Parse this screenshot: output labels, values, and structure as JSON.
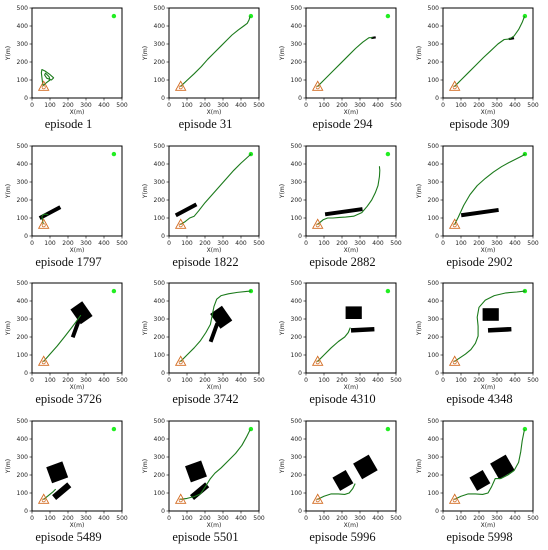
{
  "chart_data": {
    "type": "line",
    "description_free": true,
    "xlabel": "X(m)",
    "ylabel": "Y(m)",
    "xlim": [
      0,
      500
    ],
    "ylim": [
      0,
      500
    ],
    "xticks": [
      "0",
      "100",
      "200",
      "300",
      "400",
      "500"
    ],
    "yticks": [
      "0",
      "100",
      "200",
      "300",
      "400",
      "500"
    ],
    "colors": {
      "path": "#1b7a1b",
      "goal": "#22ee22",
      "start": "#d2691e",
      "obstacle": "#000000",
      "frame": "#000000"
    },
    "start": [
      65,
      65
    ],
    "goal": [
      455,
      455
    ],
    "panels": [
      {
        "caption": "episode 1",
        "obstacles": [],
        "path": [
          [
            62,
            68
          ],
          [
            58,
            90
          ],
          [
            55,
            115
          ],
          [
            52,
            140
          ],
          [
            55,
            158
          ],
          [
            72,
            150
          ],
          [
            100,
            130
          ],
          [
            120,
            112
          ],
          [
            108,
            100
          ],
          [
            82,
            110
          ],
          [
            70,
            128
          ],
          [
            75,
            138
          ],
          [
            95,
            118
          ],
          [
            100,
            100
          ],
          [
            80,
            85
          ],
          [
            65,
            72
          ]
        ]
      },
      {
        "caption": "episode 31",
        "obstacles": [],
        "path": [
          [
            65,
            65
          ],
          [
            100,
            98
          ],
          [
            140,
            135
          ],
          [
            180,
            175
          ],
          [
            215,
            215
          ],
          [
            250,
            250
          ],
          [
            290,
            290
          ],
          [
            320,
            320
          ],
          [
            350,
            350
          ],
          [
            385,
            378
          ],
          [
            415,
            400
          ],
          [
            435,
            415
          ],
          [
            445,
            435
          ],
          [
            450,
            452
          ]
        ]
      },
      {
        "caption": "episode 294",
        "obstacles": [
          {
            "shape": "rect",
            "cx": 375,
            "cy": 335,
            "w": 25,
            "h": 12,
            "angle": -10
          }
        ],
        "path": [
          [
            65,
            65
          ],
          [
            100,
            100
          ],
          [
            145,
            145
          ],
          [
            190,
            190
          ],
          [
            235,
            235
          ],
          [
            275,
            275
          ],
          [
            315,
            310
          ],
          [
            350,
            335
          ],
          [
            368,
            335
          ]
        ]
      },
      {
        "caption": "episode 309",
        "obstacles": [
          {
            "shape": "rect",
            "cx": 380,
            "cy": 330,
            "w": 30,
            "h": 12,
            "angle": -10
          }
        ],
        "path": [
          [
            65,
            65
          ],
          [
            100,
            100
          ],
          [
            140,
            140
          ],
          [
            180,
            180
          ],
          [
            225,
            225
          ],
          [
            265,
            262
          ],
          [
            305,
            300
          ],
          [
            340,
            325
          ],
          [
            370,
            328
          ],
          [
            395,
            345
          ],
          [
            420,
            380
          ],
          [
            440,
            420
          ],
          [
            452,
            452
          ]
        ]
      },
      {
        "caption": "episode 1797",
        "obstacles": [
          {
            "shape": "rect",
            "cx": 100,
            "cy": 130,
            "w": 130,
            "h": 22,
            "angle": -28
          }
        ],
        "path": [
          [
            62,
            68
          ],
          [
            58,
            90
          ],
          [
            55,
            110
          ],
          [
            62,
            118
          ],
          [
            75,
            122
          ],
          [
            88,
            118
          ]
        ]
      },
      {
        "caption": "episode 1822",
        "obstacles": [
          {
            "shape": "rect",
            "cx": 95,
            "cy": 145,
            "w": 130,
            "h": 22,
            "angle": -28
          }
        ],
        "path": [
          [
            65,
            65
          ],
          [
            90,
            80
          ],
          [
            115,
            100
          ],
          [
            140,
            110
          ],
          [
            165,
            140
          ],
          [
            200,
            185
          ],
          [
            240,
            230
          ],
          [
            280,
            275
          ],
          [
            320,
            320
          ],
          [
            360,
            365
          ],
          [
            400,
            405
          ],
          [
            430,
            432
          ],
          [
            455,
            455
          ]
        ]
      },
      {
        "caption": "episode 2882",
        "obstacles": [
          {
            "shape": "rect",
            "cx": 210,
            "cy": 135,
            "w": 210,
            "h": 22,
            "angle": -8
          }
        ],
        "path": [
          [
            65,
            65
          ],
          [
            95,
            90
          ],
          [
            120,
            100
          ],
          [
            150,
            100
          ],
          [
            185,
            103
          ],
          [
            220,
            105
          ],
          [
            265,
            110
          ],
          [
            310,
            130
          ],
          [
            340,
            165
          ],
          [
            365,
            200
          ],
          [
            385,
            240
          ],
          [
            400,
            280
          ],
          [
            408,
            330
          ],
          [
            410,
            365
          ],
          [
            408,
            385
          ]
        ]
      },
      {
        "caption": "episode 2902",
        "obstacles": [
          {
            "shape": "rect",
            "cx": 205,
            "cy": 130,
            "w": 210,
            "h": 22,
            "angle": -8
          }
        ],
        "path": [
          [
            65,
            65
          ],
          [
            85,
            105
          ],
          [
            115,
            170
          ],
          [
            150,
            230
          ],
          [
            190,
            280
          ],
          [
            235,
            320
          ],
          [
            280,
            355
          ],
          [
            325,
            385
          ],
          [
            370,
            410
          ],
          [
            410,
            430
          ],
          [
            440,
            445
          ],
          [
            455,
            455
          ]
        ]
      },
      {
        "caption": "episode 3726",
        "obstacles": [
          {
            "shape": "rect",
            "cx": 275,
            "cy": 335,
            "w": 80,
            "h": 100,
            "angle": -35
          },
          {
            "shape": "rect",
            "cx": 245,
            "cy": 250,
            "w": 110,
            "h": 22,
            "angle": -70
          }
        ],
        "path": [
          [
            65,
            65
          ],
          [
            100,
            105
          ],
          [
            140,
            150
          ],
          [
            180,
            200
          ],
          [
            215,
            245
          ],
          [
            245,
            285
          ],
          [
            270,
            320
          ]
        ]
      },
      {
        "caption": "episode 3742",
        "obstacles": [
          {
            "shape": "rect",
            "cx": 290,
            "cy": 310,
            "w": 80,
            "h": 100,
            "angle": -35
          },
          {
            "shape": "rect",
            "cx": 250,
            "cy": 225,
            "w": 110,
            "h": 22,
            "angle": -70
          }
        ],
        "path": [
          [
            65,
            65
          ],
          [
            100,
            100
          ],
          [
            140,
            140
          ],
          [
            175,
            180
          ],
          [
            205,
            225
          ],
          [
            230,
            270
          ],
          [
            240,
            320
          ],
          [
            250,
            370
          ],
          [
            265,
            410
          ],
          [
            290,
            430
          ],
          [
            330,
            440
          ],
          [
            380,
            448
          ],
          [
            430,
            453
          ],
          [
            455,
            455
          ]
        ]
      },
      {
        "caption": "episode 4310",
        "obstacles": [
          {
            "shape": "rect",
            "cx": 265,
            "cy": 335,
            "w": 90,
            "h": 70,
            "angle": 0
          },
          {
            "shape": "rect",
            "cx": 315,
            "cy": 240,
            "w": 130,
            "h": 25,
            "angle": -3
          }
        ],
        "path": [
          [
            65,
            65
          ],
          [
            100,
            100
          ],
          [
            140,
            140
          ],
          [
            180,
            175
          ],
          [
            215,
            200
          ],
          [
            235,
            225
          ],
          [
            245,
            250
          ]
        ]
      },
      {
        "caption": "episode 4348",
        "obstacles": [
          {
            "shape": "rect",
            "cx": 265,
            "cy": 325,
            "w": 90,
            "h": 70,
            "angle": 0
          },
          {
            "shape": "rect",
            "cx": 315,
            "cy": 240,
            "w": 130,
            "h": 25,
            "angle": -3
          }
        ],
        "path": [
          [
            65,
            65
          ],
          [
            95,
            85
          ],
          [
            125,
            105
          ],
          [
            155,
            130
          ],
          [
            180,
            165
          ],
          [
            195,
            205
          ],
          [
            195,
            260
          ],
          [
            190,
            310
          ],
          [
            200,
            365
          ],
          [
            235,
            405
          ],
          [
            285,
            430
          ],
          [
            350,
            445
          ],
          [
            410,
            450
          ],
          [
            455,
            455
          ]
        ]
      },
      {
        "caption": "episode 5489",
        "obstacles": [
          {
            "shape": "rect",
            "cx": 140,
            "cy": 215,
            "w": 95,
            "h": 95,
            "angle": -20
          },
          {
            "shape": "rect",
            "cx": 165,
            "cy": 110,
            "w": 110,
            "h": 35,
            "angle": -40
          }
        ],
        "path": [
          [
            65,
            65
          ],
          [
            90,
            85
          ],
          [
            115,
            105
          ],
          [
            130,
            120
          ]
        ]
      },
      {
        "caption": "episode 5501",
        "obstacles": [
          {
            "shape": "rect",
            "cx": 150,
            "cy": 220,
            "w": 95,
            "h": 95,
            "angle": -20
          },
          {
            "shape": "rect",
            "cx": 170,
            "cy": 110,
            "w": 110,
            "h": 35,
            "angle": -40
          }
        ],
        "path": [
          [
            65,
            65
          ],
          [
            100,
            70
          ],
          [
            140,
            80
          ],
          [
            175,
            95
          ],
          [
            205,
            140
          ],
          [
            230,
            180
          ],
          [
            255,
            210
          ],
          [
            290,
            240
          ],
          [
            330,
            280
          ],
          [
            370,
            320
          ],
          [
            405,
            365
          ],
          [
            430,
            410
          ],
          [
            450,
            450
          ]
        ]
      },
      {
        "caption": "episode 5996",
        "obstacles": [
          {
            "shape": "rect",
            "cx": 205,
            "cy": 170,
            "w": 85,
            "h": 85,
            "angle": -30
          },
          {
            "shape": "rect",
            "cx": 330,
            "cy": 245,
            "w": 100,
            "h": 100,
            "angle": -30
          }
        ],
        "path": [
          [
            65,
            65
          ],
          [
            100,
            82
          ],
          [
            140,
            95
          ],
          [
            180,
            95
          ],
          [
            215,
            92
          ],
          [
            240,
            100
          ],
          [
            260,
            125
          ],
          [
            272,
            150
          ]
        ]
      },
      {
        "caption": "episode 5998",
        "obstacles": [
          {
            "shape": "rect",
            "cx": 205,
            "cy": 170,
            "w": 85,
            "h": 85,
            "angle": -30
          },
          {
            "shape": "rect",
            "cx": 330,
            "cy": 245,
            "w": 100,
            "h": 100,
            "angle": -30
          }
        ],
        "path": [
          [
            65,
            65
          ],
          [
            100,
            82
          ],
          [
            140,
            95
          ],
          [
            180,
            95
          ],
          [
            220,
            92
          ],
          [
            250,
            100
          ],
          [
            270,
            135
          ],
          [
            290,
            180
          ],
          [
            320,
            180
          ],
          [
            360,
            200
          ],
          [
            395,
            225
          ],
          [
            420,
            270
          ],
          [
            432,
            330
          ],
          [
            440,
            390
          ],
          [
            452,
            450
          ]
        ]
      }
    ]
  }
}
